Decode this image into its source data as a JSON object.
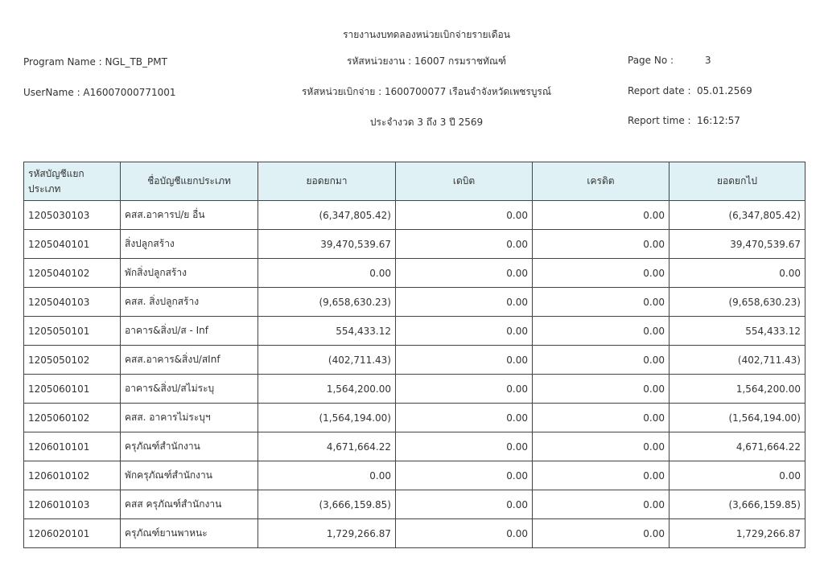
{
  "report": {
    "title": "รายงานงบทดลองหน่วยเบิกจ่ายรายเดือน",
    "program_name": "Program Name : NGL_TB_PMT",
    "username": "UserName : A16007000771001",
    "agency": "รหัสหน่วยงาน : 16007 กรมราชทัณฑ์",
    "disbursing_unit": "รหัสหน่วยเบิกจ่าย : 1600700077 เรือนจำจังหวัดเพชรบูรณ์",
    "period": "ประจำงวด 3 ถึง 3 ปี 2569",
    "page_no_label": "Page No :",
    "page_no": "3",
    "report_date_label": "Report date :",
    "report_date": "05.01.2569",
    "report_time_label": "Report time :",
    "report_time": "16:12:57"
  },
  "table": {
    "headers": [
      "รหัสบัญชีแยกประเภท",
      "ชื่อบัญชีแยกประเภท",
      "ยอดยกมา",
      "เดบิต",
      "เครดิต",
      "ยอดยกไป"
    ],
    "rows": [
      [
        "1205030103",
        "คสส.อาคารป/ย อื่น",
        "(6,347,805.42)",
        "0.00",
        "0.00",
        "(6,347,805.42)"
      ],
      [
        "1205040101",
        "สิ่งปลูกสร้าง",
        "39,470,539.67",
        "0.00",
        "0.00",
        "39,470,539.67"
      ],
      [
        "1205040102",
        "พักสิ่งปลูกสร้าง",
        "0.00",
        "0.00",
        "0.00",
        "0.00"
      ],
      [
        "1205040103",
        "คสส. สิ่งปลูกสร้าง",
        "(9,658,630.23)",
        "0.00",
        "0.00",
        "(9,658,630.23)"
      ],
      [
        "1205050101",
        "อาคาร&สิ่งป/ส - Inf",
        "554,433.12",
        "0.00",
        "0.00",
        "554,433.12"
      ],
      [
        "1205050102",
        "คสส.อาคาร&สิ่งป/สInf",
        "(402,711.43)",
        "0.00",
        "0.00",
        "(402,711.43)"
      ],
      [
        "1205060101",
        "อาคาร&สิ่งป/สไม่ระบุ",
        "1,564,200.00",
        "0.00",
        "0.00",
        "1,564,200.00"
      ],
      [
        "1205060102",
        "คสส. อาคารไม่ระบุฯ",
        "(1,564,194.00)",
        "0.00",
        "0.00",
        "(1,564,194.00)"
      ],
      [
        "1206010101",
        "ครุภัณฑ์สำนักงาน",
        "4,671,664.22",
        "0.00",
        "0.00",
        "4,671,664.22"
      ],
      [
        "1206010102",
        "พักครุภัณฑ์สำนักงาน",
        "0.00",
        "0.00",
        "0.00",
        "0.00"
      ],
      [
        "1206010103",
        "คสส ครุภัณฑ์สำนักงาน",
        "(3,666,159.85)",
        "0.00",
        "0.00",
        "(3,666,159.85)"
      ],
      [
        "1206020101",
        "ครุภัณฑ์ยานพาหนะ",
        "1,729,266.87",
        "0.00",
        "0.00",
        "1,729,266.87"
      ]
    ]
  }
}
